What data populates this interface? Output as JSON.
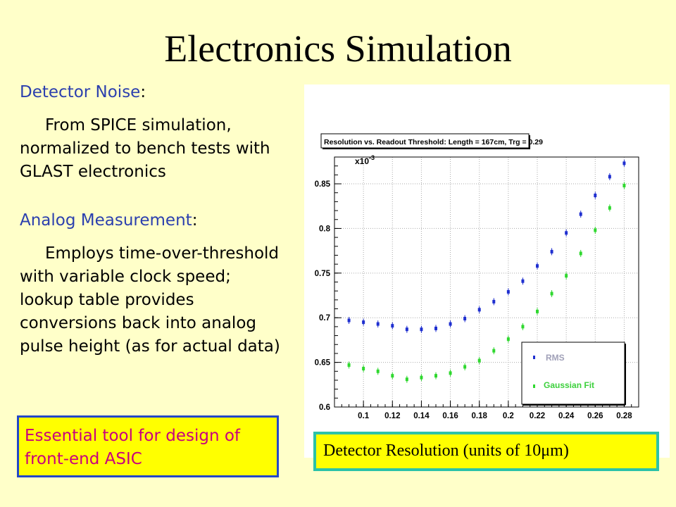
{
  "slide": {
    "title": "Electronics Simulation"
  },
  "left": {
    "section1_heading": "Detector Noise",
    "section1_text": "From SPICE simulation, normalized to bench tests with GLAST electronics",
    "section2_heading": "Analog Measurement",
    "section2_text": "Employs time-over-threshold with variable clock speed; lookup table provides conversions back into analog pulse height (as for actual data)",
    "colon": ":",
    "box_text": "Essential tool for design of front-end ASIC"
  },
  "caption": "Detector Resolution (units of 10μm)",
  "colors": {
    "rms": "#1f2fd0",
    "gaussian": "#2fd82f",
    "background": "#ffffc9"
  },
  "chart_data": {
    "type": "scatter",
    "title": "Resolution vs. Readout Threshold: Length = 167cm, Trg = 0.29",
    "multiplier_label": "x10",
    "multiplier_exp": "-3",
    "xlim": [
      0.08,
      0.29
    ],
    "ylim": [
      0.6,
      0.88
    ],
    "x_ticks": [
      "0.1",
      "0.12",
      "0.14",
      "0.16",
      "0.18",
      "0.2",
      "0.22",
      "0.24",
      "0.26",
      "0.28"
    ],
    "y_ticks": [
      "0.6",
      "0.65",
      "0.7",
      "0.75",
      "0.8",
      "0.85"
    ],
    "grid": true,
    "legend_position": "bottom-right",
    "x": [
      0.09,
      0.1,
      0.11,
      0.12,
      0.13,
      0.14,
      0.15,
      0.16,
      0.17,
      0.18,
      0.19,
      0.2,
      0.21,
      0.22,
      0.23,
      0.24,
      0.25,
      0.26,
      0.27,
      0.28
    ],
    "series": [
      {
        "name": "RMS",
        "values": [
          0.697,
          0.695,
          0.693,
          0.691,
          0.687,
          0.687,
          0.688,
          0.693,
          0.699,
          0.709,
          0.718,
          0.729,
          0.741,
          0.758,
          0.774,
          0.795,
          0.816,
          0.837,
          0.858,
          0.873
        ]
      },
      {
        "name": "Gaussian Fit",
        "values": [
          0.647,
          0.643,
          0.64,
          0.635,
          0.631,
          0.633,
          0.635,
          0.638,
          0.645,
          0.652,
          0.663,
          0.676,
          0.69,
          0.707,
          0.727,
          0.747,
          0.772,
          0.798,
          0.823,
          0.848
        ]
      }
    ]
  }
}
